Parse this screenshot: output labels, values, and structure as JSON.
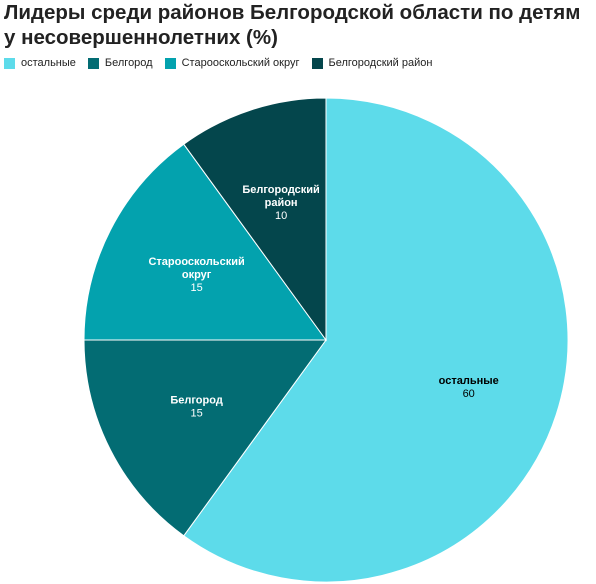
{
  "chart_data": {
    "type": "pie",
    "title": "Лидеры среди районов Белгородской области по детям у несовершеннолетних (%)",
    "legend_position": "top-left",
    "slices": [
      {
        "name": "остальные",
        "value": 60,
        "color": "#5ddbea",
        "label_lines": [
          "остальные"
        ],
        "value_text": "60",
        "label_color": "#000000"
      },
      {
        "name": "Белгород",
        "value": 15,
        "color": "#036c73",
        "label_lines": [
          "Белгород"
        ],
        "value_text": "15",
        "label_color": "#ffffff"
      },
      {
        "name": "Старооскольский округ",
        "value": 15,
        "color": "#03a2ae",
        "label_lines": [
          "Старооскольский",
          "округ"
        ],
        "value_text": "15",
        "label_color": "#ffffff"
      },
      {
        "name": "Белгородский район",
        "value": 10,
        "color": "#04464c",
        "label_lines": [
          "Белгородский",
          "район"
        ],
        "value_text": "10",
        "label_color": "#ffffff"
      }
    ]
  }
}
